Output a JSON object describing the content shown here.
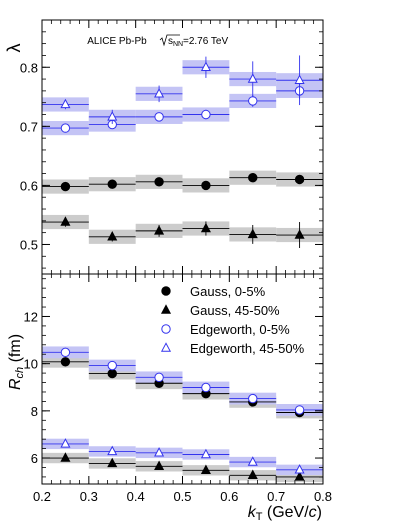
{
  "chart_data": [
    {
      "type": "scatter",
      "ylabel": "λ",
      "annotation": "ALICE Pb-Pb",
      "annotation_energy": "=2.76 TeV",
      "annotation_energy_symbol": "√s_NN",
      "ylim": [
        0.45,
        0.88
      ],
      "yticks": [
        "0.5",
        "0.6",
        "0.7",
        "0.8"
      ],
      "xlim": [
        0.2,
        0.8
      ],
      "grid": false,
      "series": [
        {
          "name": "Gauss, 0-5%",
          "marker": "filled-circle",
          "color": "#000000",
          "box_color": "#cccccc",
          "x": [
            0.25,
            0.35,
            0.45,
            0.55,
            0.65,
            0.75
          ],
          "y": [
            0.598,
            0.602,
            0.606,
            0.6,
            0.613,
            0.61
          ],
          "stat_err": [
            0.004,
            0.004,
            0.004,
            0.004,
            0.004,
            0.004
          ],
          "sys_err": [
            0.012,
            0.012,
            0.012,
            0.012,
            0.012,
            0.012
          ]
        },
        {
          "name": "Gauss, 45-50%",
          "marker": "filled-triangle",
          "color": "#000000",
          "box_color": "#cccccc",
          "x": [
            0.25,
            0.35,
            0.45,
            0.55,
            0.65,
            0.75
          ],
          "y": [
            0.538,
            0.513,
            0.523,
            0.527,
            0.517,
            0.516
          ],
          "stat_err": [
            0.008,
            0.008,
            0.01,
            0.012,
            0.016,
            0.022
          ],
          "sys_err": [
            0.012,
            0.012,
            0.012,
            0.012,
            0.012,
            0.012
          ]
        },
        {
          "name": "Edgeworth, 0-5%",
          "marker": "open-circle",
          "color": "#3333ee",
          "box_color": "#c4c4f5",
          "x": [
            0.25,
            0.35,
            0.45,
            0.55,
            0.65,
            0.75
          ],
          "y": [
            0.697,
            0.703,
            0.716,
            0.72,
            0.743,
            0.76
          ],
          "stat_err": [
            0.005,
            0.006,
            0.007,
            0.008,
            0.01,
            0.014
          ],
          "sys_err": [
            0.012,
            0.012,
            0.012,
            0.012,
            0.012,
            0.012
          ]
        },
        {
          "name": "Edgeworth, 45-50%",
          "marker": "open-triangle",
          "color": "#3333ee",
          "box_color": "#c4c4f5",
          "x": [
            0.25,
            0.35,
            0.45,
            0.55,
            0.65,
            0.75
          ],
          "y": [
            0.737,
            0.716,
            0.755,
            0.8,
            0.78,
            0.778
          ],
          "stat_err": [
            0.008,
            0.012,
            0.014,
            0.018,
            0.03,
            0.042
          ],
          "sys_err": [
            0.012,
            0.012,
            0.012,
            0.012,
            0.012,
            0.012
          ]
        }
      ]
    },
    {
      "type": "scatter",
      "ylabel_main": "R",
      "ylabel_sub": "ch",
      "ylabel_unit": " (fm)",
      "xlabel_main": "k",
      "xlabel_sub": "T",
      "xlabel_unit": " (GeV/",
      "xlabel_c": "c",
      "xlabel_close": ")",
      "ylim": [
        4.9,
        13.8
      ],
      "yticks": [
        "6",
        "8",
        "10",
        "12"
      ],
      "xlim": [
        0.2,
        0.8
      ],
      "xticks": [
        "0.2",
        "0.3",
        "0.4",
        "0.5",
        "0.6",
        "0.7",
        "0.8"
      ],
      "legend_position": "top-right",
      "grid": false,
      "series": [
        {
          "name": "Gauss, 0-5%",
          "marker": "filled-circle",
          "color": "#000000",
          "box_color": "#cccccc",
          "x": [
            0.25,
            0.35,
            0.45,
            0.55,
            0.65,
            0.75
          ],
          "y": [
            10.08,
            9.58,
            9.17,
            8.73,
            8.38,
            7.93
          ],
          "sys_err": [
            0.25,
            0.25,
            0.25,
            0.25,
            0.25,
            0.25
          ]
        },
        {
          "name": "Gauss, 45-50%",
          "marker": "filled-triangle",
          "color": "#000000",
          "box_color": "#cccccc",
          "x": [
            0.25,
            0.35,
            0.45,
            0.55,
            0.65,
            0.75
          ],
          "y": [
            6.0,
            5.77,
            5.65,
            5.48,
            5.27,
            5.2
          ],
          "sys_err": [
            0.22,
            0.22,
            0.22,
            0.22,
            0.22,
            0.22
          ]
        },
        {
          "name": "Edgeworth, 0-5%",
          "marker": "open-circle",
          "color": "#3333ee",
          "box_color": "#c4c4f5",
          "x": [
            0.25,
            0.35,
            0.45,
            0.55,
            0.65,
            0.75
          ],
          "y": [
            10.48,
            9.92,
            9.42,
            8.99,
            8.52,
            8.04
          ],
          "sys_err": [
            0.25,
            0.25,
            0.25,
            0.25,
            0.25,
            0.25
          ]
        },
        {
          "name": "Edgeworth, 45-50%",
          "marker": "open-triangle",
          "color": "#3333ee",
          "box_color": "#c4c4f5",
          "x": [
            0.25,
            0.35,
            0.45,
            0.55,
            0.65,
            0.75
          ],
          "y": [
            6.6,
            6.28,
            6.22,
            6.15,
            5.83,
            5.5
          ],
          "sys_err": [
            0.22,
            0.22,
            0.22,
            0.22,
            0.22,
            0.22
          ]
        }
      ]
    }
  ]
}
